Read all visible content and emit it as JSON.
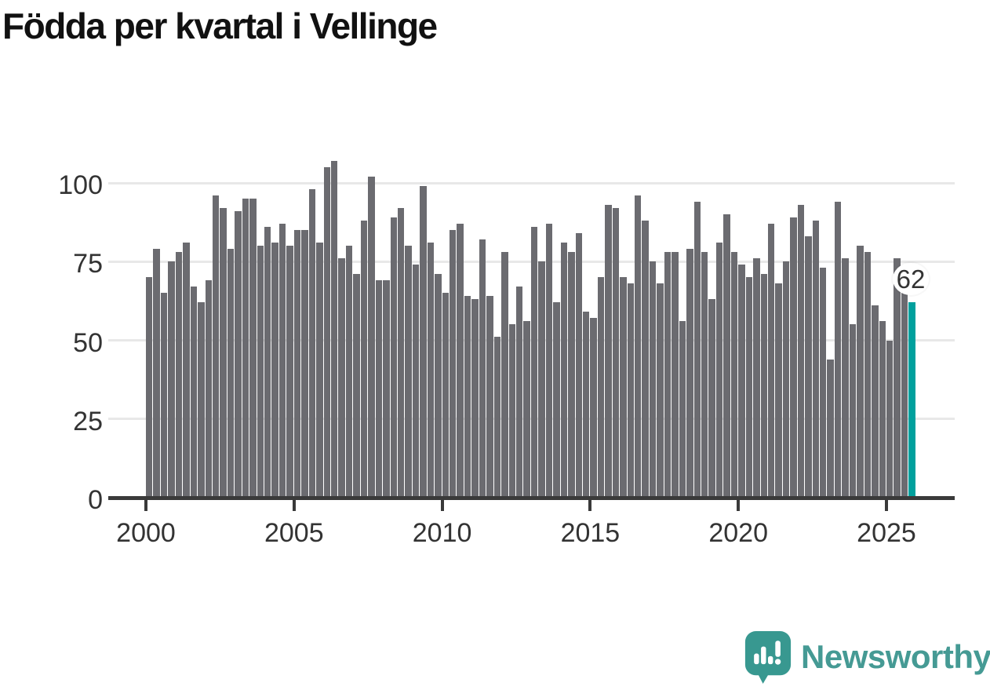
{
  "title": "Födda per kvartal i Vellinge",
  "chart_data": {
    "type": "bar",
    "frequency": "quarterly",
    "x_start": "2000 Q1",
    "x_end": "2025 Q4",
    "values": [
      70,
      79,
      65,
      75,
      78,
      81,
      67,
      62,
      69,
      96,
      92,
      79,
      91,
      95,
      95,
      80,
      86,
      81,
      87,
      80,
      85,
      85,
      98,
      81,
      105,
      107,
      76,
      80,
      71,
      88,
      102,
      69,
      69,
      89,
      92,
      80,
      74,
      99,
      81,
      71,
      65,
      85,
      87,
      64,
      63,
      82,
      64,
      51,
      78,
      55,
      67,
      56,
      86,
      75,
      87,
      62,
      81,
      78,
      84,
      59,
      57,
      70,
      93,
      92,
      70,
      68,
      96,
      88,
      75,
      68,
      78,
      78,
      56,
      79,
      94,
      78,
      63,
      81,
      90,
      78,
      74,
      70,
      76,
      71,
      87,
      68,
      75,
      89,
      93,
      83,
      88,
      73,
      44,
      94,
      76,
      55,
      80,
      78,
      61,
      56,
      50,
      76,
      65,
      62
    ],
    "highlighted_point": {
      "x": "2025 Q4",
      "value": 62,
      "label": "62"
    },
    "title": "Födda per kvartal i Vellinge",
    "xlabel": "",
    "ylabel": "",
    "ylim": [
      0,
      110
    ],
    "y_ticks": [
      0,
      25,
      50,
      75,
      100
    ],
    "y_tick_labels": [
      "0",
      "25",
      "50",
      "75",
      "100"
    ],
    "x_tick_labels": [
      "2000",
      "2005",
      "2010",
      "2015",
      "2020",
      "2025"
    ],
    "grid": "horizontal",
    "legend": "none"
  },
  "colors": {
    "bar": "#6b6b70",
    "highlight": "#00a09d",
    "grid": "#e8e8e8",
    "axis": "#3a3a3a",
    "tick_text": "#333333",
    "title_text": "#111111",
    "brand": "#459a94",
    "background": "#ffffff"
  },
  "annotation": {
    "label": "62"
  },
  "branding": {
    "name": "Newsworthy",
    "logo": "newsworthy-bubble-barchart-icon"
  }
}
